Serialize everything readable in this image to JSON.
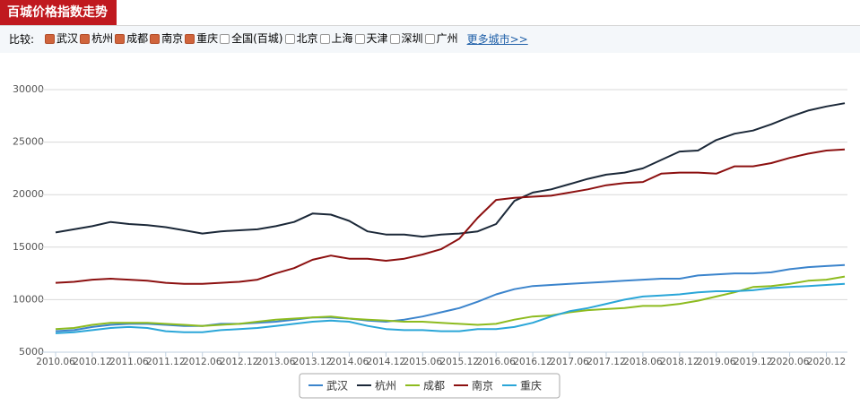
{
  "header": {
    "title": "百城价格指数走势",
    "compare_label": "比较:",
    "compare_items": [
      {
        "label": "武汉",
        "checked": true
      },
      {
        "label": "杭州",
        "checked": true
      },
      {
        "label": "成都",
        "checked": true
      },
      {
        "label": "南京",
        "checked": true
      },
      {
        "label": "重庆",
        "checked": true
      },
      {
        "label": "全国(百城)",
        "checked": false
      },
      {
        "label": "北京",
        "checked": false
      },
      {
        "label": "上海",
        "checked": false
      },
      {
        "label": "天津",
        "checked": false
      },
      {
        "label": "深圳",
        "checked": false
      },
      {
        "label": "广州",
        "checked": false
      }
    ],
    "more_link": "更多城市>>"
  },
  "chart_data": {
    "type": "line",
    "x": [
      "2010.06",
      null,
      "2010.12",
      null,
      "2011.06",
      null,
      "2011.12",
      null,
      "2012.06",
      null,
      "2012.12",
      null,
      "2013.06",
      null,
      "2013.12",
      null,
      "2014.06",
      null,
      "2014.12",
      null,
      "2015.06",
      null,
      "2015.12",
      null,
      "2016.06",
      null,
      "2016.12",
      null,
      "2017.06",
      null,
      "2017.12",
      null,
      "2018.06",
      null,
      "2018.12",
      null,
      "2019.06",
      null,
      "2019.12",
      null,
      "2020.06",
      null,
      "2020.12",
      null
    ],
    "ylim": [
      5000,
      30000
    ],
    "yticks": [
      5000,
      10000,
      15000,
      20000,
      25000,
      30000
    ],
    "grid": true,
    "legend": "bottom",
    "series": [
      {
        "name": "武汉",
        "color": "#3b84cc",
        "values": [
          7000,
          7100,
          7400,
          7600,
          7700,
          7700,
          7600,
          7500,
          7500,
          7700,
          7700,
          7800,
          7900,
          8100,
          8300,
          8300,
          8200,
          8000,
          7900,
          8100,
          8400,
          8800,
          9200,
          9800,
          10500,
          11000,
          11300,
          11400,
          11500,
          11600,
          11700,
          11800,
          11900,
          12000,
          12000,
          12300,
          12400,
          12500,
          12500,
          12600,
          12900,
          13100,
          13200,
          13300
        ]
      },
      {
        "name": "杭州",
        "color": "#1b2838",
        "values": [
          16400,
          16700,
          17000,
          17400,
          17200,
          17100,
          16900,
          16600,
          16300,
          16500,
          16600,
          16700,
          17000,
          17400,
          18200,
          18100,
          17500,
          16500,
          16200,
          16200,
          16000,
          16200,
          16300,
          16500,
          17200,
          19400,
          20200,
          20500,
          21000,
          21500,
          21900,
          22100,
          22500,
          23300,
          24100,
          24200,
          25200,
          25800,
          26100,
          26700,
          27400,
          28000,
          28400,
          28700
        ]
      },
      {
        "name": "成都",
        "color": "#8dbb1f",
        "values": [
          7200,
          7300,
          7600,
          7800,
          7800,
          7800,
          7700,
          7600,
          7500,
          7600,
          7700,
          7900,
          8100,
          8200,
          8300,
          8400,
          8200,
          8100,
          8000,
          7900,
          7900,
          7800,
          7700,
          7600,
          7700,
          8100,
          8400,
          8500,
          8800,
          9000,
          9100,
          9200,
          9400,
          9400,
          9600,
          9900,
          10300,
          10700,
          11200,
          11300,
          11500,
          11800,
          11900,
          12200
        ]
      },
      {
        "name": "南京",
        "color": "#8c1010",
        "values": [
          11600,
          11700,
          11900,
          12000,
          11900,
          11800,
          11600,
          11500,
          11500,
          11600,
          11700,
          11900,
          12500,
          13000,
          13800,
          14200,
          13900,
          13900,
          13700,
          13900,
          14300,
          14800,
          15800,
          17800,
          19500,
          19700,
          19800,
          19900,
          20200,
          20500,
          20900,
          21100,
          21200,
          22000,
          22100,
          22100,
          22000,
          22700,
          22700,
          23000,
          23500,
          23900,
          24200,
          24300
        ]
      },
      {
        "name": "重庆",
        "color": "#2aa6d8",
        "values": [
          6800,
          6900,
          7100,
          7300,
          7400,
          7300,
          7000,
          6900,
          6900,
          7100,
          7200,
          7300,
          7500,
          7700,
          7900,
          8000,
          7900,
          7500,
          7200,
          7100,
          7100,
          7000,
          7000,
          7200,
          7200,
          7400,
          7800,
          8400,
          8900,
          9200,
          9600,
          10000,
          10300,
          10400,
          10500,
          10700,
          10800,
          10800,
          10900,
          11100,
          11200,
          11300,
          11400,
          11500
        ]
      }
    ]
  }
}
